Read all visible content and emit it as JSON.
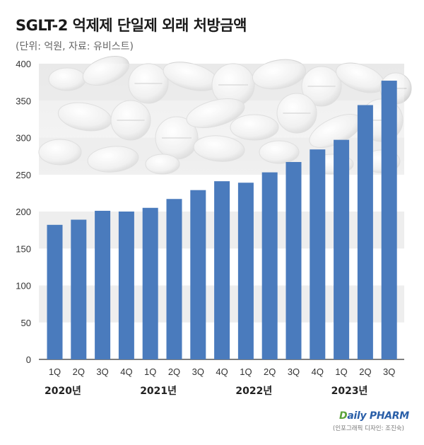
{
  "chart_data": {
    "type": "bar",
    "title": "SGLT-2 억제제 단일제 외래 처방금액",
    "subtitle": "(단위: 억원, 자료: 유비스트)",
    "categories": [
      "1Q",
      "2Q",
      "3Q",
      "4Q",
      "1Q",
      "2Q",
      "3Q",
      "4Q",
      "1Q",
      "2Q",
      "3Q",
      "4Q",
      "1Q",
      "2Q",
      "3Q"
    ],
    "year_groups": [
      {
        "label": "2020년",
        "start": 0,
        "count": 4
      },
      {
        "label": "2021년",
        "start": 4,
        "count": 4
      },
      {
        "label": "2022년",
        "start": 8,
        "count": 4
      },
      {
        "label": "2023년",
        "start": 12,
        "count": 3
      }
    ],
    "values": [
      182,
      189,
      201,
      200,
      205,
      217,
      229,
      241,
      239,
      253,
      267,
      284,
      297,
      344,
      377
    ],
    "ylim": [
      0,
      400
    ],
    "yticks": [
      "0",
      "50",
      "100",
      "150",
      "200",
      "250",
      "300",
      "350",
      "400"
    ],
    "grid": true,
    "bar_color": "#4a7bbd"
  },
  "brand": {
    "name": "DailyPHARM",
    "first": "D",
    "rest": "aily PHARM"
  },
  "credit": "(인포그래픽 디자인: 조진숙)"
}
